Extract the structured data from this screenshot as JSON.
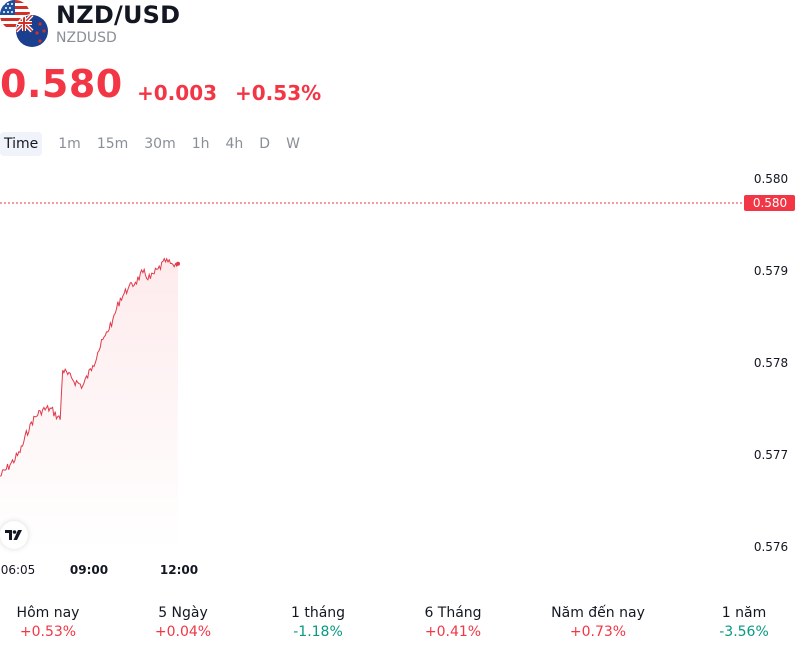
{
  "header": {
    "title": "NZD/USD",
    "code": "NZDUSD",
    "price": "0.580",
    "change_abs": "+0.003",
    "change_pct": "+0.53%"
  },
  "intervals": [
    "Time",
    "1m",
    "15m",
    "30m",
    "1h",
    "4h",
    "D",
    "W"
  ],
  "active_interval": "Time",
  "colors": {
    "up_red": "#f23645",
    "down_green": "#089981",
    "line": "#e03a4a"
  },
  "chart_data": {
    "type": "line",
    "series": [
      {
        "x": [
          "06:05",
          "06:25",
          "06:45",
          "07:05",
          "07:25",
          "07:45",
          "08:05",
          "08:10",
          "08:30",
          "08:50",
          "09:10",
          "09:20",
          "09:35",
          "09:50",
          "10:05",
          "10:20",
          "10:35",
          "10:50",
          "11:05",
          "11:20",
          "11:35",
          "11:50",
          "12:00"
        ],
        "values": [
          5.7663,
          5.7676,
          5.769,
          5.7722,
          5.7737,
          5.774,
          5.7727,
          5.7783,
          5.7772,
          5.7765,
          5.7788,
          5.7803,
          5.7822,
          5.784,
          5.7864,
          5.7874,
          5.7882,
          5.7893,
          5.7886,
          5.7897,
          5.7905,
          5.7902,
          5.7903
        ]
      }
    ],
    "x_ticks": [
      "06:05",
      "09:00",
      "12:00"
    ],
    "y_ticks": [
      "0.580",
      "0.579",
      "0.578",
      "0.577",
      "0.576"
    ],
    "last_price_label": "0.580",
    "ylim": [
      0.5758,
      0.5802
    ],
    "grid": false
  },
  "performance": [
    {
      "label": "Hôm nay",
      "value": "+0.53%",
      "trend": "neg"
    },
    {
      "label": "5 Ngày",
      "value": "+0.04%",
      "trend": "neg"
    },
    {
      "label": "1 tháng",
      "value": "-1.18%",
      "trend": "pos"
    },
    {
      "label": "6 Tháng",
      "value": "+0.41%",
      "trend": "neg"
    },
    {
      "label": "Năm đến nay",
      "value": "+0.73%",
      "trend": "neg"
    },
    {
      "label": "1 năm",
      "value": "-3.56%",
      "trend": "pos"
    }
  ]
}
